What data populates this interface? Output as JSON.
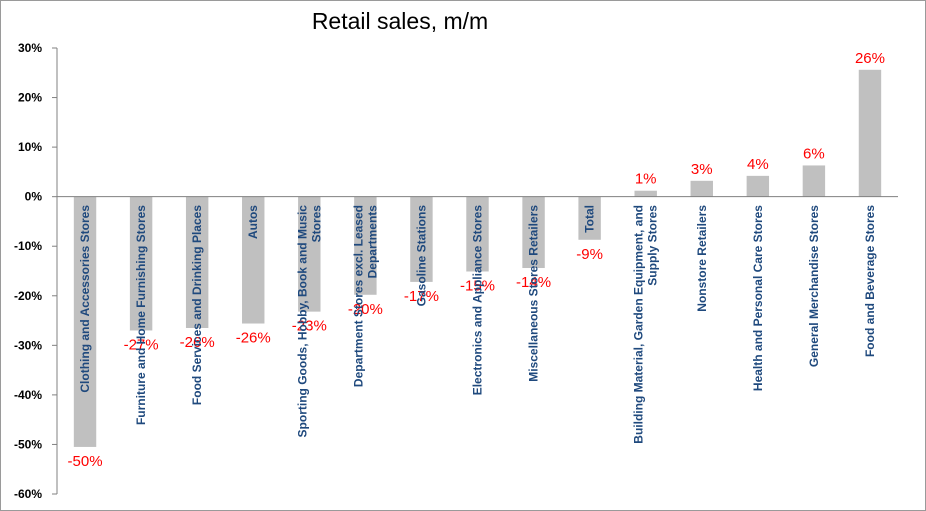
{
  "chart_data": {
    "type": "bar",
    "title": "Retail sales, m/m",
    "xlabel": "",
    "ylabel": "",
    "ylim": [
      -60,
      30
    ],
    "yticks": [
      "30%",
      "20%",
      "10%",
      "0%",
      "-10%",
      "-20%",
      "-30%",
      "-40%",
      "-50%",
      "-60%"
    ],
    "grid": false,
    "legend": "none",
    "colors": {
      "bar": "#c0c0c0",
      "data_label": "#ff0000",
      "category_label": "#1f497d",
      "axis": "#808080"
    },
    "categories": [
      [
        "Clothing and Accessories Stores"
      ],
      [
        "Furniture and Home Furnishing Stores"
      ],
      [
        "Food Services and Drinking Places"
      ],
      [
        "Autos"
      ],
      [
        "Sporting Goods, Hobby, Book and Music",
        "Stores"
      ],
      [
        "Department Stores excl. Leased",
        "Departments"
      ],
      [
        "Gasoline Stations"
      ],
      [
        "Electronics and Appliance Stores"
      ],
      [
        "Miscellaneous Stores Retailers"
      ],
      [
        "Total"
      ],
      [
        "Building Material, Garden Equipment, and",
        "Supply Stores"
      ],
      [
        "Nonstore Retailers"
      ],
      [
        "Health and Personal Care Stores"
      ],
      [
        "General Merchandise Stores"
      ],
      [
        "Food and Beverage Stores"
      ]
    ],
    "values": [
      -50.5,
      -27,
      -26.5,
      -25.6,
      -23.2,
      -19.8,
      -17.2,
      -15.1,
      -14.4,
      -8.7,
      1.2,
      3.2,
      4.2,
      6.3,
      25.6
    ],
    "data_labels": [
      "-50%",
      "-27%",
      "-26%",
      "-26%",
      "-23%",
      "-20%",
      "-17%",
      "-15%",
      "-14%",
      "-9%",
      "1%",
      "3%",
      "4%",
      "6%",
      "26%"
    ]
  }
}
